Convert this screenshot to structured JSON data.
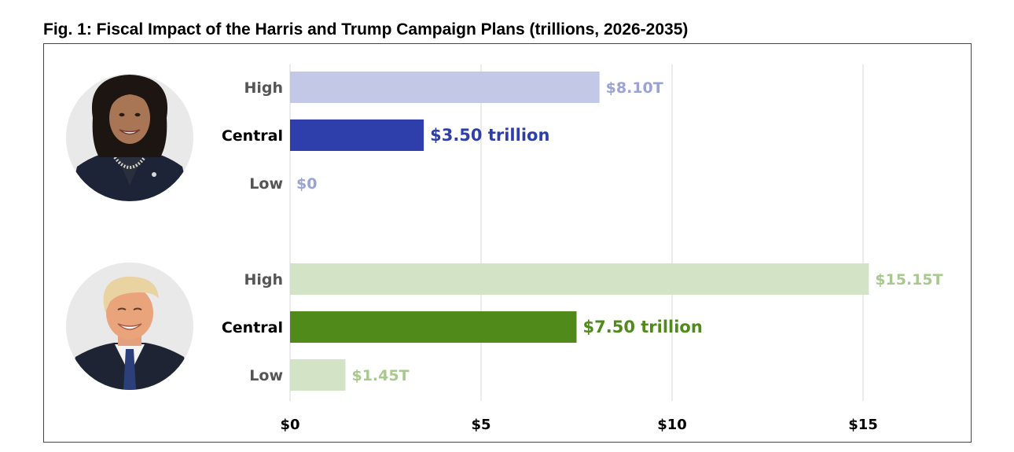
{
  "chart_data": {
    "type": "bar",
    "orientation": "horizontal",
    "title": "Fig. 1: Fiscal Impact of the Harris and Trump Campaign Plans (trillions, 2026-2035)",
    "xlim": [
      0,
      16.5
    ],
    "xticks": [
      0,
      5,
      10,
      15
    ],
    "xtick_labels": [
      "$0",
      "$5",
      "$10",
      "$15"
    ],
    "grid": true,
    "groups": [
      {
        "portrait": "kamala-harris-portrait",
        "bars": [
          {
            "label": "High",
            "value": 8.1,
            "value_label": "$8.10T",
            "color": "#c2c8e6",
            "label_color": "#9aa3d3",
            "emphasis": false
          },
          {
            "label": "Central",
            "value": 3.5,
            "value_label": "$3.50 trillion",
            "color": "#2e3fab",
            "label_color": "#2e3fab",
            "emphasis": true
          },
          {
            "label": "Low",
            "value": 0,
            "value_label": "$0",
            "color": "#c2c8e6",
            "label_color": "#9aa3d3",
            "emphasis": false
          }
        ]
      },
      {
        "portrait": "donald-trump-portrait",
        "bars": [
          {
            "label": "High",
            "value": 15.15,
            "value_label": "$15.15T",
            "color": "#d3e4c6",
            "label_color": "#a7c98e",
            "emphasis": false
          },
          {
            "label": "Central",
            "value": 7.5,
            "value_label": "$7.50 trillion",
            "color": "#4f8a1b",
            "label_color": "#4f8a1b",
            "emphasis": true
          },
          {
            "label": "Low",
            "value": 1.45,
            "value_label": "$1.45T",
            "color": "#d3e4c6",
            "label_color": "#a7c98e",
            "emphasis": false
          }
        ]
      }
    ]
  }
}
